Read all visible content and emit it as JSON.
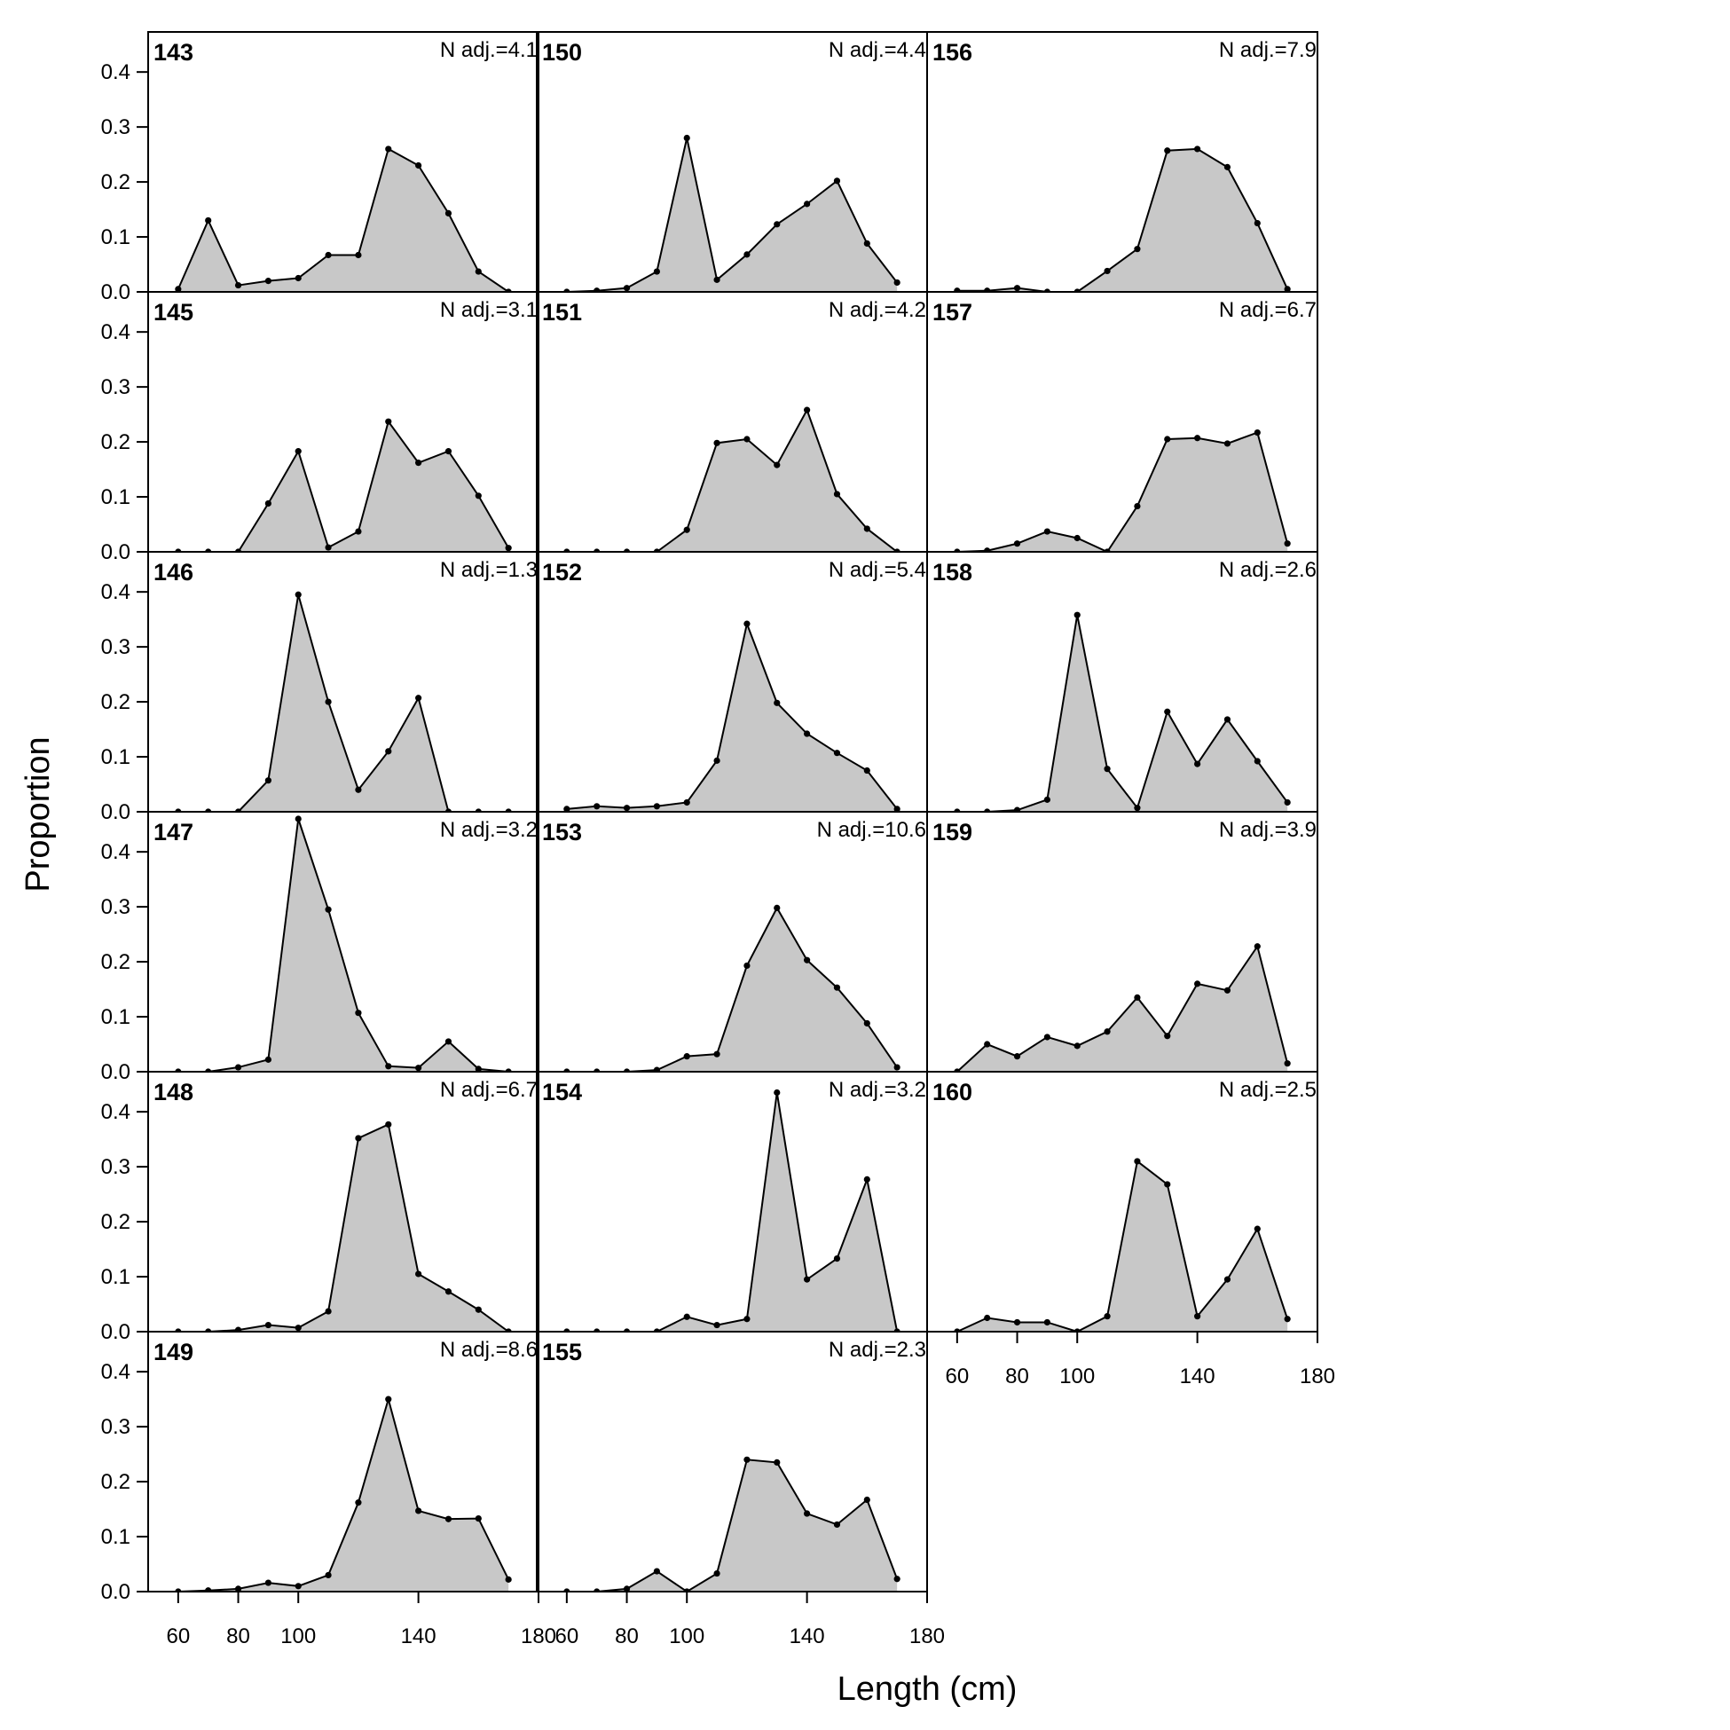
{
  "chart_data": {
    "type": "area",
    "xlabel": "Length (cm)",
    "ylabel": "Proportion",
    "xlim": [
      50,
      180
    ],
    "ylim": [
      0,
      0.46
    ],
    "x_ticks": [
      60,
      80,
      100,
      140,
      180
    ],
    "y_ticks": [
      0.0,
      0.1,
      0.2,
      0.3,
      0.4
    ],
    "y_tick_labels": [
      "0.0",
      "0.1",
      "0.2",
      "0.3",
      "0.4"
    ],
    "x": [
      60,
      70,
      80,
      90,
      100,
      110,
      120,
      130,
      140,
      150,
      160,
      170
    ],
    "fill_color": "#c8c8c8",
    "line_color": "#000000",
    "panels": [
      {
        "id": "143",
        "n_adj": "N adj.=4.1",
        "values": [
          0.005,
          0.13,
          0.012,
          0.02,
          0.025,
          0.067,
          0.067,
          0.26,
          0.23,
          0.143,
          0.037,
          0.0
        ]
      },
      {
        "id": "145",
        "n_adj": "N adj.=3.1",
        "values": [
          0.0,
          0.0,
          0.0,
          0.088,
          0.183,
          0.008,
          0.037,
          0.237,
          0.162,
          0.183,
          0.102,
          0.007
        ]
      },
      {
        "id": "146",
        "n_adj": "N adj.=1.3",
        "values": [
          0.0,
          0.0,
          0.0,
          0.057,
          0.395,
          0.2,
          0.04,
          0.11,
          0.207,
          0.0,
          0.0,
          0.0
        ]
      },
      {
        "id": "147",
        "n_adj": "N adj.=3.2",
        "values": [
          0.0,
          0.0,
          0.008,
          0.022,
          0.46,
          0.295,
          0.107,
          0.01,
          0.007,
          0.055,
          0.005,
          0.0
        ]
      },
      {
        "id": "148",
        "n_adj": "N adj.=6.7",
        "values": [
          0.0,
          0.0,
          0.003,
          0.012,
          0.007,
          0.037,
          0.352,
          0.377,
          0.105,
          0.073,
          0.04,
          0.0
        ]
      },
      {
        "id": "149",
        "n_adj": "N adj.=8.6",
        "values": [
          0.0,
          0.002,
          0.005,
          0.016,
          0.01,
          0.03,
          0.162,
          0.35,
          0.147,
          0.132,
          0.133,
          0.022
        ]
      },
      {
        "id": "150",
        "n_adj": "N adj.=4.4",
        "values": [
          0.0,
          0.002,
          0.007,
          0.037,
          0.28,
          0.022,
          0.068,
          0.123,
          0.16,
          0.202,
          0.088,
          0.017
        ]
      },
      {
        "id": "151",
        "n_adj": "N adj.=4.2",
        "values": [
          0.0,
          0.0,
          0.0,
          0.0,
          0.04,
          0.198,
          0.205,
          0.158,
          0.258,
          0.105,
          0.042,
          0.0
        ]
      },
      {
        "id": "152",
        "n_adj": "N adj.=5.4",
        "values": [
          0.005,
          0.01,
          0.007,
          0.01,
          0.017,
          0.093,
          0.342,
          0.198,
          0.142,
          0.107,
          0.075,
          0.005
        ]
      },
      {
        "id": "153",
        "n_adj": "N adj.=10.6",
        "values": [
          0.0,
          0.0,
          0.0,
          0.003,
          0.028,
          0.032,
          0.193,
          0.298,
          0.203,
          0.153,
          0.088,
          0.008
        ]
      },
      {
        "id": "154",
        "n_adj": "N adj.=3.2",
        "values": [
          0.0,
          0.0,
          0.0,
          0.0,
          0.027,
          0.012,
          0.023,
          0.435,
          0.095,
          0.133,
          0.277,
          0.0
        ]
      },
      {
        "id": "155",
        "n_adj": "N adj.=2.3",
        "values": [
          0.0,
          0.0,
          0.005,
          0.037,
          0.0,
          0.033,
          0.24,
          0.235,
          0.142,
          0.122,
          0.167,
          0.023
        ]
      },
      {
        "id": "156",
        "n_adj": "N adj.=7.9",
        "values": [
          0.002,
          0.002,
          0.007,
          0.0,
          0.0,
          0.038,
          0.078,
          0.257,
          0.26,
          0.227,
          0.125,
          0.005
        ]
      },
      {
        "id": "157",
        "n_adj": "N adj.=6.7",
        "values": [
          0.0,
          0.002,
          0.015,
          0.037,
          0.025,
          0.0,
          0.083,
          0.205,
          0.207,
          0.197,
          0.217,
          0.015
        ]
      },
      {
        "id": "158",
        "n_adj": "N adj.=2.6",
        "values": [
          0.0,
          0.0,
          0.003,
          0.022,
          0.358,
          0.078,
          0.007,
          0.182,
          0.087,
          0.168,
          0.092,
          0.017
        ]
      },
      {
        "id": "159",
        "n_adj": "N adj.=3.9",
        "values": [
          0.0,
          0.05,
          0.028,
          0.063,
          0.047,
          0.073,
          0.135,
          0.065,
          0.16,
          0.148,
          0.228,
          0.015
        ]
      },
      {
        "id": "160",
        "n_adj": "N adj.=2.5",
        "values": [
          0.0,
          0.025,
          0.017,
          0.017,
          0.0,
          0.028,
          0.31,
          0.268,
          0.028,
          0.095,
          0.187,
          0.023
        ]
      }
    ],
    "grid": false,
    "legend": "none"
  }
}
